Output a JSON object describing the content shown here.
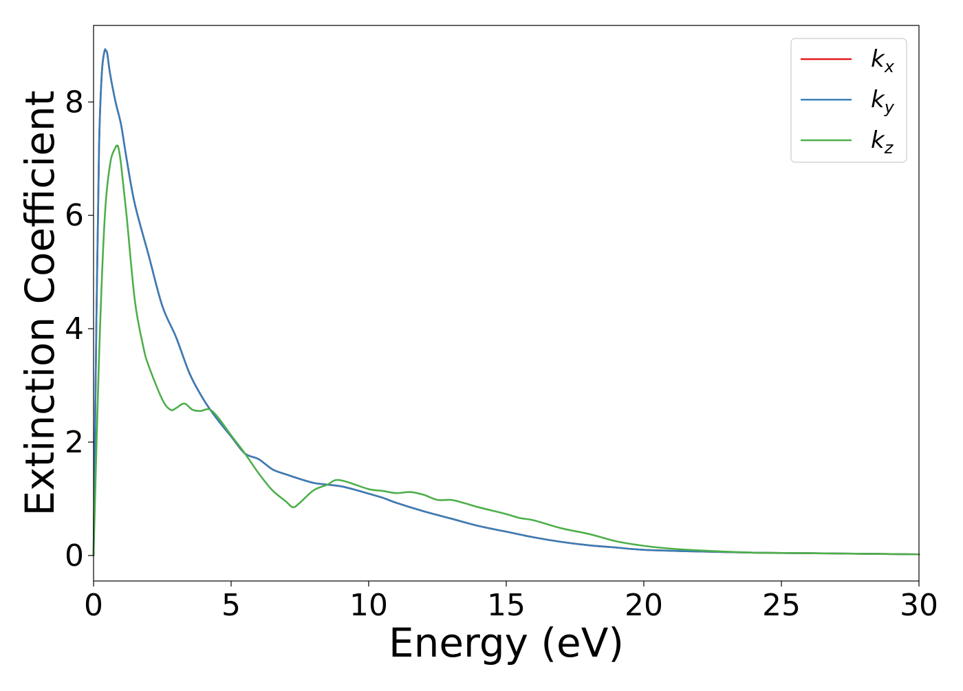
{
  "chart_data": {
    "type": "line",
    "title": "",
    "xlabel": "Energy (eV)",
    "ylabel": "Extinction Coefficient",
    "xlim": [
      0,
      30
    ],
    "ylim": [
      -0.45,
      9.35
    ],
    "xticks": [
      0,
      5,
      10,
      15,
      20,
      25,
      30
    ],
    "xtick_labels": [
      "0",
      "5",
      "10",
      "15",
      "20",
      "25",
      "30"
    ],
    "yticks": [
      0,
      2,
      4,
      6,
      8
    ],
    "ytick_labels": [
      "0",
      "2",
      "4",
      "6",
      "8"
    ],
    "grid": false,
    "legend_position": "top-right",
    "series": [
      {
        "name": "k_x",
        "legend_main": "k",
        "legend_sub": "x",
        "color": "#e41a1c",
        "x": [
          0,
          0.1,
          0.2,
          0.3,
          0.4,
          0.45,
          0.5,
          0.6,
          0.8,
          1.0,
          1.2,
          1.5,
          2.0,
          2.5,
          3.0,
          3.5,
          4.0,
          4.5,
          5.0,
          5.5,
          6.0,
          6.5,
          7.0,
          7.5,
          8.0,
          8.5,
          9.0,
          9.5,
          10.0,
          10.5,
          11.0,
          12.0,
          13.0,
          14.0,
          15.0,
          16.0,
          17.0,
          18.0,
          19.0,
          20.0,
          22.0,
          24.0,
          26.0,
          28.0,
          30.0
        ],
        "y": [
          0,
          4.0,
          7.2,
          8.5,
          8.9,
          8.9,
          8.85,
          8.5,
          8.0,
          7.6,
          7.0,
          6.2,
          5.3,
          4.4,
          3.85,
          3.2,
          2.75,
          2.4,
          2.1,
          1.8,
          1.7,
          1.52,
          1.43,
          1.35,
          1.28,
          1.25,
          1.22,
          1.16,
          1.09,
          1.02,
          0.93,
          0.78,
          0.65,
          0.52,
          0.42,
          0.32,
          0.24,
          0.18,
          0.14,
          0.1,
          0.07,
          0.05,
          0.04,
          0.03,
          0.02
        ]
      },
      {
        "name": "k_y",
        "legend_main": "k",
        "legend_sub": "y",
        "color": "#377eb8",
        "x": [
          0,
          0.1,
          0.2,
          0.3,
          0.4,
          0.45,
          0.5,
          0.6,
          0.8,
          1.0,
          1.2,
          1.5,
          2.0,
          2.5,
          3.0,
          3.5,
          4.0,
          4.5,
          5.0,
          5.5,
          6.0,
          6.5,
          7.0,
          7.5,
          8.0,
          8.5,
          9.0,
          9.5,
          10.0,
          10.5,
          11.0,
          12.0,
          13.0,
          14.0,
          15.0,
          16.0,
          17.0,
          18.0,
          19.0,
          20.0,
          22.0,
          24.0,
          26.0,
          28.0,
          30.0
        ],
        "y": [
          0,
          4.0,
          7.2,
          8.5,
          8.9,
          8.9,
          8.85,
          8.5,
          8.0,
          7.6,
          7.0,
          6.2,
          5.3,
          4.4,
          3.85,
          3.2,
          2.75,
          2.4,
          2.1,
          1.8,
          1.7,
          1.52,
          1.43,
          1.35,
          1.28,
          1.25,
          1.22,
          1.16,
          1.09,
          1.02,
          0.93,
          0.78,
          0.65,
          0.52,
          0.42,
          0.32,
          0.24,
          0.18,
          0.14,
          0.1,
          0.07,
          0.05,
          0.04,
          0.03,
          0.02
        ]
      },
      {
        "name": "k_z",
        "legend_main": "k",
        "legend_sub": "z",
        "color": "#4daf4a",
        "x": [
          0,
          0.2,
          0.4,
          0.6,
          0.8,
          0.85,
          0.9,
          1.0,
          1.2,
          1.5,
          1.8,
          2.0,
          2.5,
          2.8,
          3.0,
          3.3,
          3.6,
          3.9,
          4.2,
          4.5,
          5.0,
          5.5,
          6.0,
          6.5,
          7.0,
          7.25,
          7.5,
          8.0,
          8.5,
          8.8,
          9.2,
          10.0,
          10.5,
          11.0,
          11.5,
          12.0,
          12.5,
          13.0,
          13.5,
          14.0,
          15.0,
          15.5,
          16.0,
          17.0,
          18.0,
          19.0,
          20.0,
          21.0,
          22.0,
          24.0,
          26.0,
          28.0,
          30.0
        ],
        "y": [
          0,
          3.5,
          5.9,
          6.9,
          7.2,
          7.22,
          7.2,
          6.9,
          6.0,
          4.5,
          3.7,
          3.35,
          2.75,
          2.57,
          2.6,
          2.68,
          2.57,
          2.55,
          2.58,
          2.45,
          2.12,
          1.8,
          1.45,
          1.15,
          0.95,
          0.85,
          0.93,
          1.15,
          1.25,
          1.33,
          1.3,
          1.17,
          1.14,
          1.1,
          1.12,
          1.07,
          0.98,
          0.98,
          0.92,
          0.85,
          0.73,
          0.66,
          0.62,
          0.48,
          0.38,
          0.25,
          0.17,
          0.12,
          0.09,
          0.05,
          0.04,
          0.03,
          0.02
        ]
      }
    ]
  }
}
